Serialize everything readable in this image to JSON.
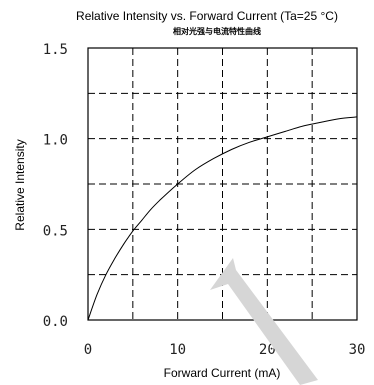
{
  "chart_data": {
    "type": "line",
    "title": "Relative Intensity vs. Forward Current (Ta=25 °C)",
    "subtitle": "相对光强与电流特性曲线",
    "xlabel": "Forward Current (mA)",
    "ylabel": "Relative Intensity",
    "xlim": [
      0,
      30
    ],
    "ylim": [
      0,
      1.5
    ],
    "x_ticks": [
      0,
      10,
      20,
      30
    ],
    "x_tick_labels": [
      "0",
      "10",
      "20",
      "30"
    ],
    "y_ticks": [
      0,
      0.5,
      1.0,
      1.5
    ],
    "y_tick_labels": [
      "0.0",
      "0.5",
      "1.0",
      "1.5"
    ],
    "x_grid": [
      5,
      10,
      15,
      20,
      25
    ],
    "y_grid": [
      0.25,
      0.5,
      0.75,
      1.0,
      1.25
    ],
    "grid": true,
    "series": [
      {
        "x": [
          0,
          1,
          2,
          3,
          4,
          5,
          6,
          7,
          8,
          10,
          12,
          14,
          16,
          18,
          20,
          22,
          24,
          26,
          28,
          30
        ],
        "y": [
          0,
          0.14,
          0.25,
          0.34,
          0.42,
          0.49,
          0.55,
          0.61,
          0.66,
          0.75,
          0.83,
          0.89,
          0.94,
          0.98,
          1.01,
          1.04,
          1.07,
          1.09,
          1.11,
          1.12
        ]
      }
    ]
  }
}
